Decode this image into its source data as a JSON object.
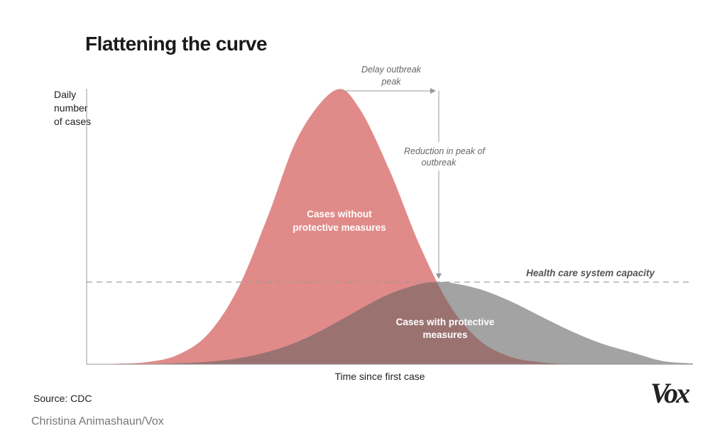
{
  "chart_data": {
    "type": "area",
    "title": "Flattening the curve",
    "xlabel": "Time since first case",
    "ylabel": "Daily number of cases",
    "xlim": [
      0,
      100
    ],
    "ylim": [
      0,
      100
    ],
    "grid": false,
    "legend": "none",
    "series": [
      {
        "name": "Cases without protective measures",
        "color": "#e08b89",
        "x": [
          0,
          5,
          10,
          15,
          20,
          25,
          30,
          35,
          41,
          45,
          50,
          55,
          60,
          65,
          70,
          75,
          80,
          85,
          100
        ],
        "y": [
          0,
          0.2,
          0.8,
          3.4,
          11,
          27.8,
          54.6,
          83.5,
          100,
          93.3,
          70.6,
          43.1,
          21.2,
          8.4,
          2.7,
          0.7,
          0.1,
          0,
          0
        ]
      },
      {
        "name": "Cases with protective measures",
        "color": "#a3a3a3",
        "x": [
          0,
          10,
          15,
          20,
          25,
          30,
          35,
          40,
          45,
          50,
          55,
          58,
          60,
          65,
          70,
          75,
          80,
          85,
          90,
          95,
          100
        ],
        "y": [
          0,
          0.1,
          0.4,
          0.9,
          2.2,
          4.6,
          8.4,
          13.8,
          20,
          25.7,
          29.3,
          30,
          29.8,
          27.3,
          22.9,
          17.4,
          12,
          7.5,
          4.3,
          1.2,
          0.3
        ]
      }
    ],
    "overlap_color": "#9a7371",
    "capacity": {
      "label": "Health care system capacity",
      "y": 30
    },
    "annotations": {
      "delay": [
        "Delay outbreak",
        "peak"
      ],
      "reduction": [
        "Reduction in peak of",
        "outbreak"
      ]
    },
    "series_labels": {
      "without": [
        "Cases without",
        "protective measures"
      ],
      "with": [
        "Cases with protective",
        "measures"
      ]
    }
  },
  "footer": {
    "source": "Source: CDC",
    "credit": "Christina Animashaun/Vox",
    "logo": "Vox"
  }
}
